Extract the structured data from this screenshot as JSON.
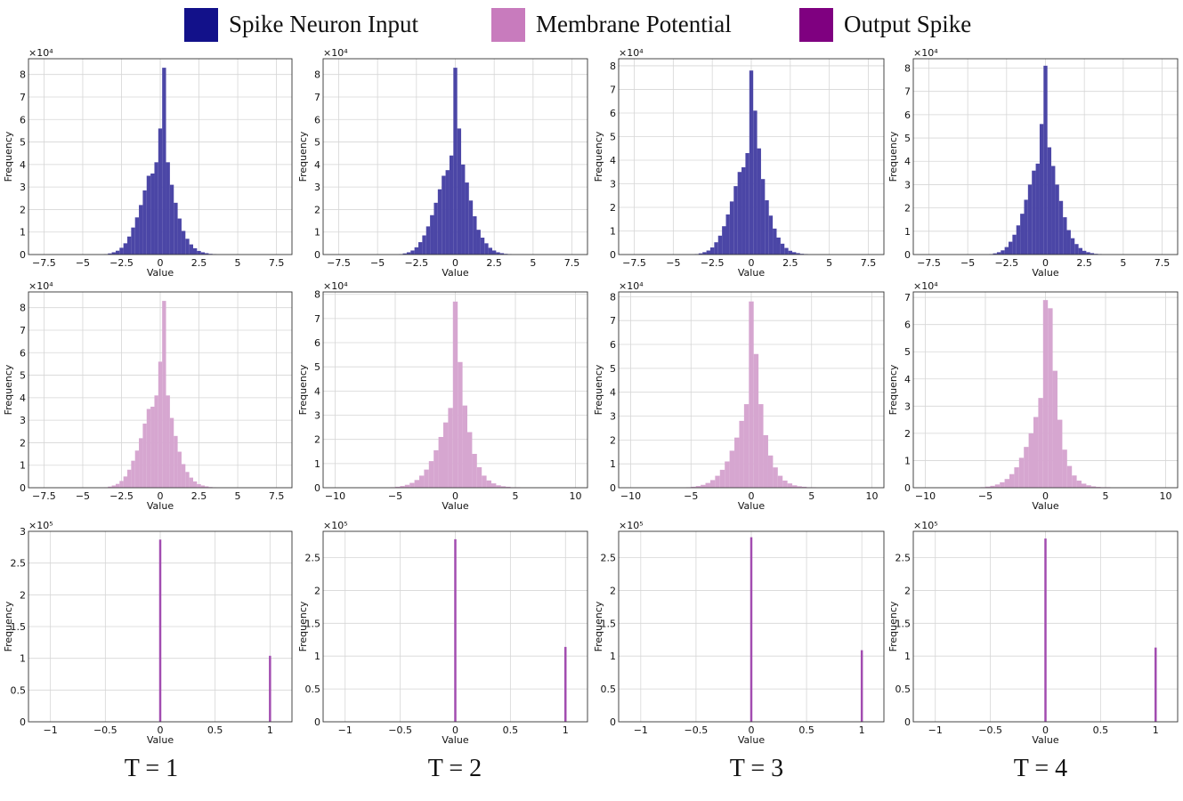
{
  "legend": {
    "items": [
      {
        "label": "Spike Neuron Input",
        "color": "#12118a"
      },
      {
        "label": "Membrane Potential",
        "color": "#c87bbd"
      },
      {
        "label": "Output Spike",
        "color": "#7f0080"
      }
    ]
  },
  "time_labels": [
    "T = 1",
    "T = 2",
    "T = 3",
    "T = 4"
  ],
  "chart_data": [
    {
      "type": "bar",
      "row": "Spike Neuron Input",
      "title": "T = 1",
      "xlabel": "Value",
      "ylabel": "Frequency",
      "y_multiplier_label": "×10⁴",
      "xlim": [
        -8.5,
        8.5
      ],
      "ylim": [
        0,
        8.7
      ],
      "xticks": [
        -7.5,
        -5,
        -2.5,
        0,
        2.5,
        5,
        7.5
      ],
      "yticks": [
        0,
        1,
        2,
        3,
        4,
        5,
        6,
        7,
        8
      ],
      "grid": true,
      "color": "#4b46a6",
      "bin_width": 0.25,
      "bins": [
        [
          -3.5,
          0.02
        ],
        [
          -3.25,
          0.05
        ],
        [
          -3.0,
          0.1
        ],
        [
          -2.75,
          0.17
        ],
        [
          -2.5,
          0.3
        ],
        [
          -2.25,
          0.5
        ],
        [
          -2.0,
          0.8
        ],
        [
          -1.75,
          1.2
        ],
        [
          -1.5,
          1.65
        ],
        [
          -1.25,
          2.2
        ],
        [
          -1.0,
          2.85
        ],
        [
          -0.75,
          3.5
        ],
        [
          -0.5,
          3.6
        ],
        [
          -0.25,
          4.1
        ],
        [
          0.0,
          5.6
        ],
        [
          0.25,
          8.3
        ],
        [
          0.5,
          4.1
        ],
        [
          0.75,
          3.1
        ],
        [
          1.0,
          2.3
        ],
        [
          1.25,
          1.6
        ],
        [
          1.5,
          1.05
        ],
        [
          1.75,
          0.7
        ],
        [
          2.0,
          0.45
        ],
        [
          2.25,
          0.28
        ],
        [
          2.5,
          0.16
        ],
        [
          2.75,
          0.1
        ],
        [
          3.0,
          0.06
        ],
        [
          3.25,
          0.03
        ],
        [
          3.5,
          0.02
        ]
      ]
    },
    {
      "type": "bar",
      "row": "Spike Neuron Input",
      "title": "T = 2",
      "xlabel": "Value",
      "ylabel": "Frequency",
      "y_multiplier_label": "×10⁴",
      "xlim": [
        -8.5,
        8.5
      ],
      "ylim": [
        0,
        8.7
      ],
      "xticks": [
        -7.5,
        -5,
        -2.5,
        0,
        2.5,
        5,
        7.5
      ],
      "yticks": [
        0,
        1,
        2,
        3,
        4,
        5,
        6,
        7,
        8
      ],
      "grid": true,
      "color": "#4b46a6",
      "bin_width": 0.25,
      "bins": [
        [
          -3.5,
          0.02
        ],
        [
          -3.25,
          0.05
        ],
        [
          -3.0,
          0.1
        ],
        [
          -2.75,
          0.18
        ],
        [
          -2.5,
          0.32
        ],
        [
          -2.25,
          0.55
        ],
        [
          -2.0,
          0.85
        ],
        [
          -1.75,
          1.25
        ],
        [
          -1.5,
          1.75
        ],
        [
          -1.25,
          2.3
        ],
        [
          -1.0,
          2.9
        ],
        [
          -0.75,
          3.5
        ],
        [
          -0.5,
          3.75
        ],
        [
          -0.25,
          4.4
        ],
        [
          0.0,
          8.3
        ],
        [
          0.25,
          5.6
        ],
        [
          0.5,
          4.0
        ],
        [
          0.75,
          3.2
        ],
        [
          1.0,
          2.4
        ],
        [
          1.25,
          1.7
        ],
        [
          1.5,
          1.1
        ],
        [
          1.75,
          0.75
        ],
        [
          2.0,
          0.5
        ],
        [
          2.25,
          0.3
        ],
        [
          2.5,
          0.18
        ],
        [
          2.75,
          0.1
        ],
        [
          3.0,
          0.06
        ],
        [
          3.25,
          0.03
        ],
        [
          3.5,
          0.02
        ]
      ]
    },
    {
      "type": "bar",
      "row": "Spike Neuron Input",
      "title": "T = 3",
      "xlabel": "Value",
      "ylabel": "Frequency",
      "y_multiplier_label": "×10⁴",
      "xlim": [
        -8.5,
        8.5
      ],
      "ylim": [
        0,
        8.3
      ],
      "xticks": [
        -7.5,
        -5,
        -2.5,
        0,
        2.5,
        5,
        7.5
      ],
      "yticks": [
        0,
        1,
        2,
        3,
        4,
        5,
        6,
        7,
        8
      ],
      "grid": true,
      "color": "#4b46a6",
      "bin_width": 0.25,
      "bins": [
        [
          -3.5,
          0.02
        ],
        [
          -3.25,
          0.05
        ],
        [
          -3.0,
          0.1
        ],
        [
          -2.75,
          0.17
        ],
        [
          -2.5,
          0.3
        ],
        [
          -2.25,
          0.52
        ],
        [
          -2.0,
          0.8
        ],
        [
          -1.75,
          1.2
        ],
        [
          -1.5,
          1.7
        ],
        [
          -1.25,
          2.25
        ],
        [
          -1.0,
          2.9
        ],
        [
          -0.75,
          3.5
        ],
        [
          -0.5,
          3.7
        ],
        [
          -0.25,
          4.3
        ],
        [
          0.0,
          7.8
        ],
        [
          0.25,
          6.1
        ],
        [
          0.5,
          4.5
        ],
        [
          0.75,
          3.2
        ],
        [
          1.0,
          2.3
        ],
        [
          1.25,
          1.65
        ],
        [
          1.5,
          1.1
        ],
        [
          1.75,
          0.72
        ],
        [
          2.0,
          0.46
        ],
        [
          2.25,
          0.28
        ],
        [
          2.5,
          0.16
        ],
        [
          2.75,
          0.1
        ],
        [
          3.0,
          0.06
        ],
        [
          3.25,
          0.03
        ],
        [
          3.5,
          0.02
        ]
      ]
    },
    {
      "type": "bar",
      "row": "Spike Neuron Input",
      "title": "T = 4",
      "xlabel": "Value",
      "ylabel": "Frequency",
      "y_multiplier_label": "×10⁴",
      "xlim": [
        -8.5,
        8.5
      ],
      "ylim": [
        0,
        8.4
      ],
      "xticks": [
        -7.5,
        -5,
        -2.5,
        0,
        2.5,
        5,
        7.5
      ],
      "yticks": [
        0,
        1,
        2,
        3,
        4,
        5,
        6,
        7,
        8
      ],
      "grid": true,
      "color": "#4b46a6",
      "bin_width": 0.25,
      "bins": [
        [
          -3.5,
          0.02
        ],
        [
          -3.25,
          0.05
        ],
        [
          -3.0,
          0.1
        ],
        [
          -2.75,
          0.18
        ],
        [
          -2.5,
          0.32
        ],
        [
          -2.25,
          0.55
        ],
        [
          -2.0,
          0.85
        ],
        [
          -1.75,
          1.25
        ],
        [
          -1.5,
          1.75
        ],
        [
          -1.25,
          2.35
        ],
        [
          -1.0,
          3.0
        ],
        [
          -0.75,
          3.6
        ],
        [
          -0.5,
          3.9
        ],
        [
          -0.25,
          5.6
        ],
        [
          0.0,
          8.1
        ],
        [
          0.25,
          4.6
        ],
        [
          0.5,
          3.8
        ],
        [
          0.75,
          3.0
        ],
        [
          1.0,
          2.3
        ],
        [
          1.25,
          1.6
        ],
        [
          1.5,
          1.05
        ],
        [
          1.75,
          0.7
        ],
        [
          2.0,
          0.45
        ],
        [
          2.25,
          0.28
        ],
        [
          2.5,
          0.16
        ],
        [
          2.75,
          0.1
        ],
        [
          3.0,
          0.06
        ],
        [
          3.25,
          0.03
        ],
        [
          3.5,
          0.02
        ]
      ]
    },
    {
      "type": "bar",
      "row": "Membrane Potential",
      "title": "T = 1",
      "xlabel": "Value",
      "ylabel": "Frequency",
      "y_multiplier_label": "×10⁴",
      "xlim": [
        -8.5,
        8.5
      ],
      "ylim": [
        0,
        8.7
      ],
      "xticks": [
        -7.5,
        -5,
        -2.5,
        0,
        2.5,
        5,
        7.5
      ],
      "yticks": [
        0,
        1,
        2,
        3,
        4,
        5,
        6,
        7,
        8
      ],
      "grid": true,
      "color": "#d6a6d0",
      "bin_width": 0.25,
      "bins": [
        [
          -3.5,
          0.02
        ],
        [
          -3.25,
          0.05
        ],
        [
          -3.0,
          0.1
        ],
        [
          -2.75,
          0.17
        ],
        [
          -2.5,
          0.3
        ],
        [
          -2.25,
          0.5
        ],
        [
          -2.0,
          0.8
        ],
        [
          -1.75,
          1.2
        ],
        [
          -1.5,
          1.65
        ],
        [
          -1.25,
          2.2
        ],
        [
          -1.0,
          2.85
        ],
        [
          -0.75,
          3.5
        ],
        [
          -0.5,
          3.6
        ],
        [
          -0.25,
          4.1
        ],
        [
          0.0,
          5.6
        ],
        [
          0.25,
          8.3
        ],
        [
          0.5,
          4.1
        ],
        [
          0.75,
          3.1
        ],
        [
          1.0,
          2.3
        ],
        [
          1.25,
          1.6
        ],
        [
          1.5,
          1.05
        ],
        [
          1.75,
          0.7
        ],
        [
          2.0,
          0.45
        ],
        [
          2.25,
          0.28
        ],
        [
          2.5,
          0.16
        ],
        [
          2.75,
          0.1
        ],
        [
          3.0,
          0.06
        ],
        [
          3.25,
          0.03
        ],
        [
          3.5,
          0.02
        ]
      ]
    },
    {
      "type": "bar",
      "row": "Membrane Potential",
      "title": "T = 2",
      "xlabel": "Value",
      "ylabel": "Frequency",
      "y_multiplier_label": "×10⁴",
      "xlim": [
        -11,
        11
      ],
      "ylim": [
        0,
        8.1
      ],
      "xticks": [
        -10,
        -5,
        0,
        5,
        10
      ],
      "yticks": [
        0,
        1,
        2,
        3,
        4,
        5,
        6,
        7,
        8
      ],
      "grid": true,
      "color": "#d6a6d0",
      "bin_width": 0.4,
      "bins": [
        [
          -5.2,
          0.02
        ],
        [
          -4.8,
          0.04
        ],
        [
          -4.4,
          0.07
        ],
        [
          -4.0,
          0.12
        ],
        [
          -3.6,
          0.2
        ],
        [
          -3.2,
          0.32
        ],
        [
          -2.8,
          0.5
        ],
        [
          -2.4,
          0.75
        ],
        [
          -2.0,
          1.1
        ],
        [
          -1.6,
          1.55
        ],
        [
          -1.2,
          2.1
        ],
        [
          -0.8,
          2.7
        ],
        [
          -0.4,
          3.3
        ],
        [
          0.0,
          7.7
        ],
        [
          0.4,
          5.2
        ],
        [
          0.8,
          3.4
        ],
        [
          1.2,
          2.3
        ],
        [
          1.6,
          1.4
        ],
        [
          2.0,
          0.85
        ],
        [
          2.4,
          0.5
        ],
        [
          2.8,
          0.3
        ],
        [
          3.2,
          0.18
        ],
        [
          3.6,
          0.1
        ],
        [
          4.0,
          0.06
        ],
        [
          4.4,
          0.04
        ],
        [
          4.8,
          0.02
        ],
        [
          5.2,
          0.02
        ]
      ]
    },
    {
      "type": "bar",
      "row": "Membrane Potential",
      "title": "T = 3",
      "xlabel": "Value",
      "ylabel": "Frequency",
      "y_multiplier_label": "×10⁴",
      "xlim": [
        -11,
        11
      ],
      "ylim": [
        0,
        8.2
      ],
      "xticks": [
        -10,
        -5,
        0,
        5,
        10
      ],
      "yticks": [
        0,
        1,
        2,
        3,
        4,
        5,
        6,
        7,
        8
      ],
      "grid": true,
      "color": "#d6a6d0",
      "bin_width": 0.4,
      "bins": [
        [
          -5.2,
          0.02
        ],
        [
          -4.8,
          0.04
        ],
        [
          -4.4,
          0.07
        ],
        [
          -4.0,
          0.12
        ],
        [
          -3.6,
          0.2
        ],
        [
          -3.2,
          0.32
        ],
        [
          -2.8,
          0.5
        ],
        [
          -2.4,
          0.75
        ],
        [
          -2.0,
          1.1
        ],
        [
          -1.6,
          1.55
        ],
        [
          -1.2,
          2.1
        ],
        [
          -0.8,
          2.8
        ],
        [
          -0.4,
          3.5
        ],
        [
          0.0,
          7.8
        ],
        [
          0.4,
          5.6
        ],
        [
          0.8,
          3.5
        ],
        [
          1.2,
          2.2
        ],
        [
          1.6,
          1.35
        ],
        [
          2.0,
          0.85
        ],
        [
          2.4,
          0.5
        ],
        [
          2.8,
          0.3
        ],
        [
          3.2,
          0.18
        ],
        [
          3.6,
          0.1
        ],
        [
          4.0,
          0.06
        ],
        [
          4.4,
          0.04
        ],
        [
          4.8,
          0.02
        ],
        [
          5.2,
          0.02
        ]
      ]
    },
    {
      "type": "bar",
      "row": "Membrane Potential",
      "title": "T = 4",
      "xlabel": "Value",
      "ylabel": "Frequency",
      "y_multiplier_label": "×10⁴",
      "xlim": [
        -11,
        11
      ],
      "ylim": [
        0,
        7.2
      ],
      "xticks": [
        -10,
        -5,
        0,
        5,
        10
      ],
      "yticks": [
        0,
        1,
        2,
        3,
        4,
        5,
        6,
        7
      ],
      "grid": true,
      "color": "#d6a6d0",
      "bin_width": 0.4,
      "bins": [
        [
          -5.2,
          0.02
        ],
        [
          -4.8,
          0.04
        ],
        [
          -4.4,
          0.07
        ],
        [
          -4.0,
          0.12
        ],
        [
          -3.6,
          0.2
        ],
        [
          -3.2,
          0.32
        ],
        [
          -2.8,
          0.5
        ],
        [
          -2.4,
          0.75
        ],
        [
          -2.0,
          1.1
        ],
        [
          -1.6,
          1.5
        ],
        [
          -1.2,
          2.0
        ],
        [
          -0.8,
          2.6
        ],
        [
          -0.4,
          3.3
        ],
        [
          0.0,
          6.9
        ],
        [
          0.4,
          6.6
        ],
        [
          0.8,
          4.3
        ],
        [
          1.2,
          2.5
        ],
        [
          1.6,
          1.4
        ],
        [
          2.0,
          0.8
        ],
        [
          2.4,
          0.45
        ],
        [
          2.8,
          0.26
        ],
        [
          3.2,
          0.15
        ],
        [
          3.6,
          0.09
        ],
        [
          4.0,
          0.05
        ],
        [
          4.4,
          0.03
        ],
        [
          4.8,
          0.02
        ],
        [
          5.2,
          0.02
        ]
      ]
    },
    {
      "type": "bar",
      "row": "Output Spike",
      "title": "T = 1",
      "xlabel": "Value",
      "ylabel": "Frequency",
      "y_multiplier_label": "×10⁵",
      "xlim": [
        -1.2,
        1.2
      ],
      "ylim": [
        0,
        3.0
      ],
      "xticks": [
        -1.0,
        -0.5,
        0.0,
        0.5,
        1.0
      ],
      "yticks": [
        0.0,
        0.5,
        1.0,
        1.5,
        2.0,
        2.5,
        3.0
      ],
      "grid": true,
      "color": "#a24cb0",
      "bin_width": 0.02,
      "bins": [
        [
          0.0,
          2.87
        ],
        [
          1.0,
          1.04
        ]
      ]
    },
    {
      "type": "bar",
      "row": "Output Spike",
      "title": "T = 2",
      "xlabel": "Value",
      "ylabel": "Frequency",
      "y_multiplier_label": "×10⁵",
      "xlim": [
        -1.2,
        1.2
      ],
      "ylim": [
        0,
        2.9
      ],
      "xticks": [
        -1.0,
        -0.5,
        0.0,
        0.5,
        1.0
      ],
      "yticks": [
        0.0,
        0.5,
        1.0,
        1.5,
        2.0,
        2.5
      ],
      "grid": true,
      "color": "#a24cb0",
      "bin_width": 0.02,
      "bins": [
        [
          0.0,
          2.78
        ],
        [
          1.0,
          1.14
        ]
      ]
    },
    {
      "type": "bar",
      "row": "Output Spike",
      "title": "T = 3",
      "xlabel": "Value",
      "ylabel": "Frequency",
      "y_multiplier_label": "×10⁵",
      "xlim": [
        -1.2,
        1.2
      ],
      "ylim": [
        0,
        2.9
      ],
      "xticks": [
        -1.0,
        -0.5,
        0.0,
        0.5,
        1.0
      ],
      "yticks": [
        0.0,
        0.5,
        1.0,
        1.5,
        2.0,
        2.5
      ],
      "grid": true,
      "color": "#a24cb0",
      "bin_width": 0.02,
      "bins": [
        [
          0.0,
          2.81
        ],
        [
          1.0,
          1.09
        ]
      ]
    },
    {
      "type": "bar",
      "row": "Output Spike",
      "title": "T = 4",
      "xlabel": "Value",
      "ylabel": "Frequency",
      "y_multiplier_label": "×10⁵",
      "xlim": [
        -1.2,
        1.2
      ],
      "ylim": [
        0,
        2.9
      ],
      "xticks": [
        -1.0,
        -0.5,
        0.0,
        0.5,
        1.0
      ],
      "yticks": [
        0.0,
        0.5,
        1.0,
        1.5,
        2.0,
        2.5
      ],
      "grid": true,
      "color": "#a24cb0",
      "bin_width": 0.02,
      "bins": [
        [
          0.0,
          2.79
        ],
        [
          1.0,
          1.13
        ]
      ]
    }
  ]
}
